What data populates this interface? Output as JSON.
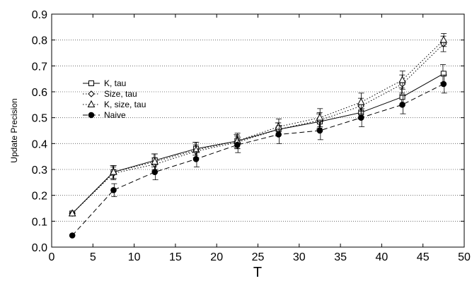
{
  "chart_data": {
    "type": "line",
    "title": "",
    "xlabel": "T",
    "ylabel": "Update Precision",
    "xlim": [
      0,
      50
    ],
    "ylim": [
      0.0,
      0.9
    ],
    "xticks": [
      0,
      5,
      10,
      15,
      20,
      25,
      30,
      35,
      40,
      45,
      50
    ],
    "yticks": [
      "0.0",
      "0.1",
      "0.2",
      "0.3",
      "0.4",
      "0.5",
      "0.6",
      "0.7",
      "0.8",
      "0.9"
    ],
    "grid": "horizontal dotted",
    "legend_position": "left",
    "x": [
      2.5,
      7.5,
      12.5,
      17.5,
      22.5,
      27.5,
      32.5,
      37.5,
      42.5,
      47.5
    ],
    "series": [
      {
        "name": "K, tau",
        "line_style": "solid",
        "marker": "open-square",
        "values": [
          0.13,
          0.29,
          0.335,
          0.38,
          0.41,
          0.455,
          0.485,
          0.52,
          0.58,
          0.67
        ],
        "errors": [
          0.0,
          0.025,
          0.025,
          0.025,
          0.025,
          0.025,
          0.03,
          0.025,
          0.035,
          0.035
        ]
      },
      {
        "name": "Size, tau",
        "line_style": "dotted",
        "marker": "open-diamond",
        "values": [
          0.13,
          0.285,
          0.32,
          0.37,
          0.405,
          0.455,
          0.49,
          0.545,
          0.63,
          0.785
        ],
        "errors": [
          0.0,
          0.025,
          0.025,
          0.025,
          0.025,
          0.025,
          0.03,
          0.03,
          0.035,
          0.03
        ]
      },
      {
        "name": "K, size, tau",
        "line_style": "dotted",
        "marker": "open-triangle",
        "values": [
          0.13,
          0.29,
          0.33,
          0.375,
          0.41,
          0.465,
          0.5,
          0.56,
          0.645,
          0.8
        ],
        "errors": [
          0.0,
          0.025,
          0.03,
          0.03,
          0.03,
          0.03,
          0.035,
          0.035,
          0.035,
          0.025
        ]
      },
      {
        "name": "Naive",
        "line_style": "dashed",
        "marker": "filled-circle",
        "values": [
          0.045,
          0.22,
          0.29,
          0.34,
          0.395,
          0.435,
          0.45,
          0.5,
          0.55,
          0.63
        ],
        "errors": [
          0.0,
          0.025,
          0.03,
          0.03,
          0.03,
          0.035,
          0.035,
          0.035,
          0.035,
          0.035
        ]
      }
    ]
  }
}
